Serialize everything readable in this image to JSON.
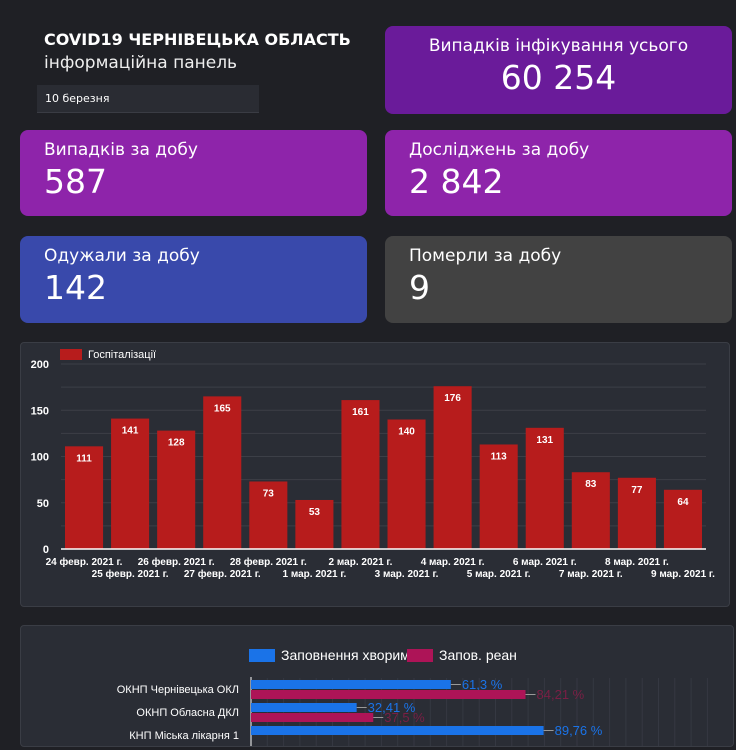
{
  "header": {
    "title": "COVID19 ЧЕРНІВЕЦЬКА ОБЛАСТЬ",
    "subtitle": "інформаційна панель",
    "date": "10 березня"
  },
  "cards": [
    {
      "label": "Випадків інфікування усього",
      "value": "60 254",
      "color": "#6a1b9a"
    },
    {
      "label": "Випадків за добу",
      "value": "587",
      "color": "#8e24aa"
    },
    {
      "label": "Досліджень за добу",
      "value": "2 842",
      "color": "#8e24aa"
    },
    {
      "label": "Одужали за добу",
      "value": "142",
      "color": "#3949ab"
    },
    {
      "label": "Померли за добу",
      "value": "9",
      "color": "#424242"
    }
  ],
  "chart_data": [
    {
      "type": "bar",
      "legend": [
        "Госпіталізації"
      ],
      "color": "#b71c1c",
      "ylim": [
        0,
        200
      ],
      "yticks": [
        0,
        50,
        100,
        150,
        200
      ],
      "categories": [
        "24 февр. 2021 г.",
        "25 февр. 2021 г.",
        "26 февр. 2021 г.",
        "27 февр. 2021 г.",
        "28 февр. 2021 г.",
        "1 мар. 2021 г.",
        "2 мар. 2021 г.",
        "3 мар. 2021 г.",
        "4 мар. 2021 г.",
        "5 мар. 2021 г.",
        "6 мар. 2021 г.",
        "7 мар. 2021 г.",
        "8 мар. 2021 г.",
        "9 мар. 2021 г."
      ],
      "values": [
        111,
        141,
        128,
        165,
        73,
        53,
        161,
        140,
        176,
        113,
        131,
        83,
        77,
        64
      ]
    },
    {
      "type": "bar",
      "orientation": "horizontal",
      "xlim": [
        0,
        100
      ],
      "categories": [
        "ОКНП Чернівецька ОКЛ",
        "ОКНП Обласна ДКЛ",
        "КНП Міська лікарня 1"
      ],
      "series": [
        {
          "name": "Заповнення хворими",
          "color": "#1a73e8",
          "values": [
            61.3,
            32.41,
            89.76
          ],
          "labels": [
            "61,3 %",
            "32,41 %",
            "89,76 %"
          ]
        },
        {
          "name": "Запов. реан",
          "color": "#ad1457",
          "values": [
            84.21,
            37.5,
            null
          ],
          "labels": [
            "84,21 %",
            "37,5 %",
            ""
          ]
        }
      ]
    }
  ]
}
